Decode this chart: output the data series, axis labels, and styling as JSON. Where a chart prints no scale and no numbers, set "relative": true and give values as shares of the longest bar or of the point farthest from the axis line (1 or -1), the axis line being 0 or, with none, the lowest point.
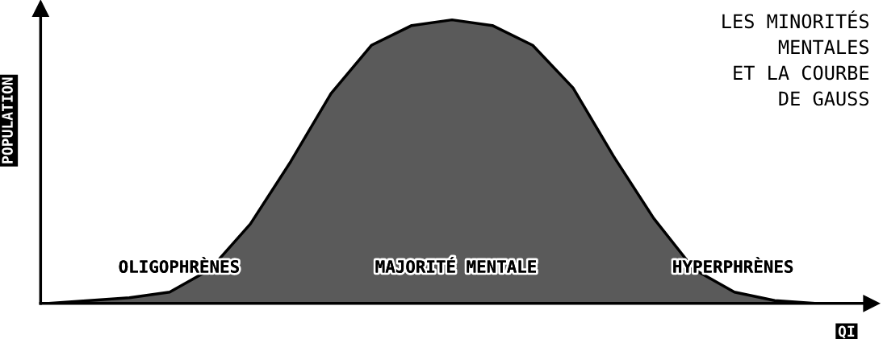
{
  "chart_data": {
    "type": "area",
    "relative": true,
    "title": "LES MINORITÉS\nMENTALES\nET LA COURBE\nDE GAUSS",
    "xlabel": "QI",
    "ylabel": "POPULATION",
    "categories": [
      null,
      null,
      null,
      null,
      null,
      null,
      null,
      null,
      null,
      null,
      null,
      null,
      null,
      null,
      null,
      null,
      null,
      null,
      null,
      null,
      null
    ],
    "series": [
      {
        "color": "#5a5a5a",
        "values": [
          0,
          0.01,
          0.02,
          0.04,
          0.12,
          0.28,
          0.5,
          0.74,
          0.91,
          0.98,
          1,
          0.98,
          0.91,
          0.76,
          0.52,
          0.3,
          0.12,
          0.04,
          0.01,
          0,
          0
        ]
      }
    ],
    "annotations": [
      "OLIGOPHRÈNES",
      "MAJORITÉ MENTALE",
      "HYPERPHRÈNES"
    ],
    "grid": false,
    "legend": false
  }
}
